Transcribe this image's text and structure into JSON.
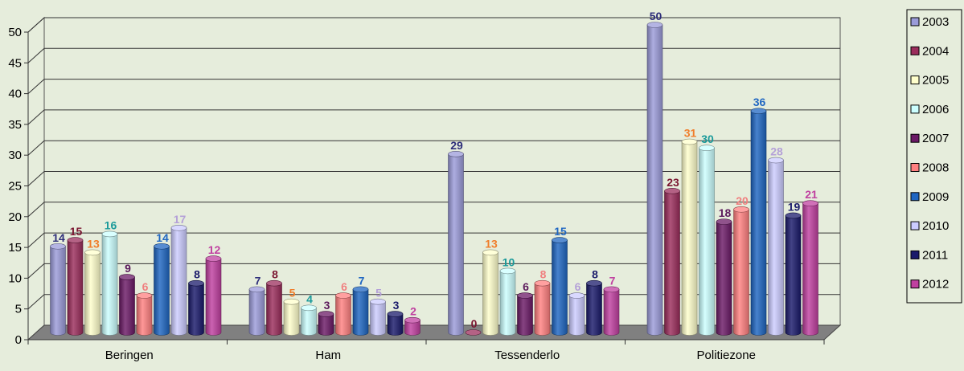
{
  "chart_data": {
    "type": "bar",
    "title": "",
    "xlabel": "",
    "ylabel": "",
    "ylim": [
      0,
      50
    ],
    "yticks": [
      0,
      5,
      10,
      15,
      20,
      25,
      30,
      35,
      40,
      45,
      50
    ],
    "grid": true,
    "legend_position": "right",
    "categories": [
      "Beringen",
      "Ham",
      "Tessenderlo",
      "Politiezone"
    ],
    "series": [
      {
        "name": "2003",
        "color": "#9b9bd9",
        "label_color": "#2e2e7a",
        "values": [
          14,
          7,
          29,
          50
        ]
      },
      {
        "name": "2004",
        "color": "#9b2d5c",
        "label_color": "#7a1530",
        "values": [
          15,
          8,
          0,
          23
        ]
      },
      {
        "name": "2005",
        "color": "#ffffcc",
        "label_color": "#f07d2a",
        "values": [
          13,
          5,
          13,
          31
        ]
      },
      {
        "name": "2006",
        "color": "#ccffff",
        "label_color": "#1a9a9a",
        "values": [
          16,
          4,
          10,
          30
        ]
      },
      {
        "name": "2007",
        "color": "#6b1a66",
        "label_color": "#5c1a5c",
        "values": [
          9,
          3,
          6,
          18
        ]
      },
      {
        "name": "2008",
        "color": "#ff8080",
        "label_color": "#f08080",
        "values": [
          6,
          6,
          8,
          20
        ]
      },
      {
        "name": "2009",
        "color": "#1f66c2",
        "label_color": "#1f66c2",
        "values": [
          14,
          7,
          15,
          36
        ]
      },
      {
        "name": "2010",
        "color": "#ccccff",
        "label_color": "#b4a0d8",
        "values": [
          17,
          5,
          6,
          28
        ]
      },
      {
        "name": "2011",
        "color": "#1a1a6b",
        "label_color": "#1a1a6b",
        "values": [
          8,
          3,
          8,
          19
        ]
      },
      {
        "name": "2012",
        "color": "#c040a0",
        "label_color": "#c040a0",
        "values": [
          12,
          2,
          7,
          21
        ]
      }
    ]
  }
}
